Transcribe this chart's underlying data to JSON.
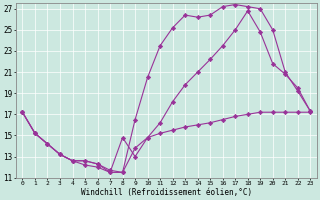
{
  "xlabel": "Windchill (Refroidissement éolien,°C)",
  "bg_color": "#cce8e0",
  "line_color": "#993399",
  "xlim": [
    -0.5,
    23.5
  ],
  "ylim": [
    11,
    27.5
  ],
  "xticks": [
    0,
    1,
    2,
    3,
    4,
    5,
    6,
    7,
    8,
    9,
    10,
    11,
    12,
    13,
    14,
    15,
    16,
    17,
    18,
    19,
    20,
    21,
    22,
    23
  ],
  "yticks": [
    11,
    13,
    15,
    17,
    19,
    21,
    23,
    25,
    27
  ],
  "line1_x": [
    0,
    1,
    2,
    3,
    4,
    5,
    6,
    7,
    8,
    9,
    10,
    11,
    12,
    13,
    14,
    15,
    16,
    17,
    18,
    19,
    20,
    21,
    22,
    23
  ],
  "line1_y": [
    17.2,
    15.2,
    14.2,
    13.2,
    12.6,
    12.6,
    12.3,
    11.5,
    11.5,
    16.5,
    20.5,
    23.5,
    25.2,
    26.4,
    26.2,
    26.4,
    27.2,
    27.4,
    27.2,
    27.0,
    25.0,
    21.0,
    19.2,
    17.3
  ],
  "line2_x": [
    0,
    1,
    2,
    3,
    4,
    5,
    6,
    7,
    8,
    9,
    10,
    11,
    12,
    13,
    14,
    15,
    16,
    17,
    18,
    19,
    20,
    21,
    22,
    23
  ],
  "line2_y": [
    17.2,
    15.2,
    14.2,
    13.2,
    12.6,
    12.2,
    12.0,
    11.5,
    14.8,
    13.0,
    14.8,
    16.2,
    18.2,
    19.8,
    21.0,
    22.2,
    23.5,
    25.0,
    26.8,
    24.8,
    21.8,
    20.8,
    19.5,
    17.3
  ],
  "line3_x": [
    0,
    1,
    2,
    3,
    4,
    5,
    6,
    7,
    8,
    9,
    10,
    11,
    12,
    13,
    14,
    15,
    16,
    17,
    18,
    19,
    20,
    21,
    22,
    23
  ],
  "line3_y": [
    17.2,
    15.2,
    14.2,
    13.2,
    12.6,
    12.6,
    12.3,
    11.7,
    11.5,
    13.8,
    14.8,
    15.2,
    15.5,
    15.8,
    16.0,
    16.2,
    16.5,
    16.8,
    17.0,
    17.2,
    17.2,
    17.2,
    17.2,
    17.2
  ]
}
